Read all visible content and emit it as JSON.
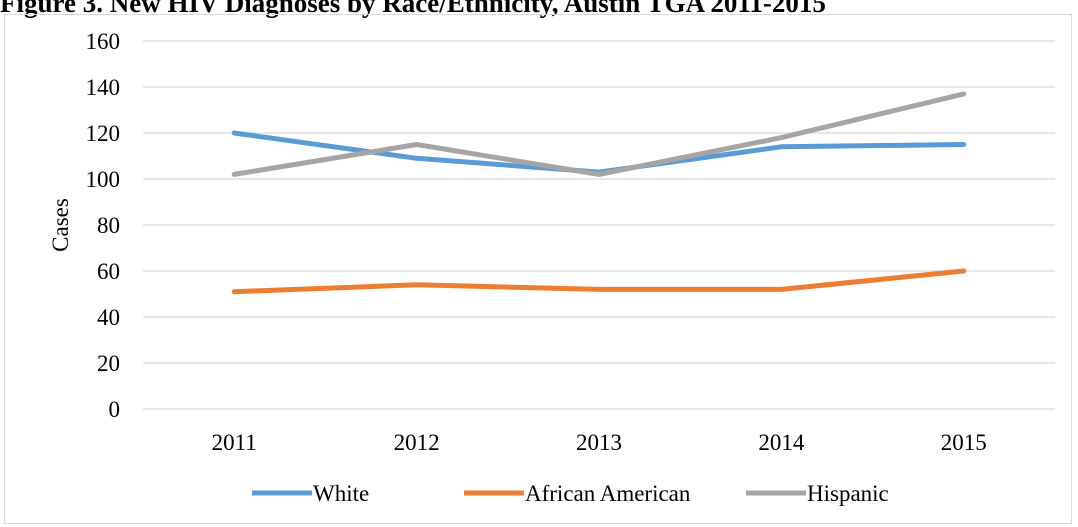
{
  "chart_data": {
    "type": "line",
    "title": "Figure 3. New HIV Diagnoses by Race/Ethnicity, Austin TGA 2011-2015",
    "xlabel": "",
    "ylabel": "Cases",
    "ylim": [
      0,
      160
    ],
    "yticks": [
      0,
      20,
      40,
      60,
      80,
      100,
      120,
      140,
      160
    ],
    "categories": [
      "2011",
      "2012",
      "2013",
      "2014",
      "2015"
    ],
    "grid": true,
    "legend_position": "bottom",
    "series": [
      {
        "name": "White",
        "color": "#5b9bd5",
        "values": [
          120,
          109,
          103,
          114,
          115
        ]
      },
      {
        "name": "African American",
        "color": "#ed7d31",
        "values": [
          51,
          54,
          52,
          52,
          60
        ]
      },
      {
        "name": "Hispanic",
        "color": "#a5a5a5",
        "values": [
          102,
          115,
          102,
          118,
          137
        ]
      }
    ]
  }
}
